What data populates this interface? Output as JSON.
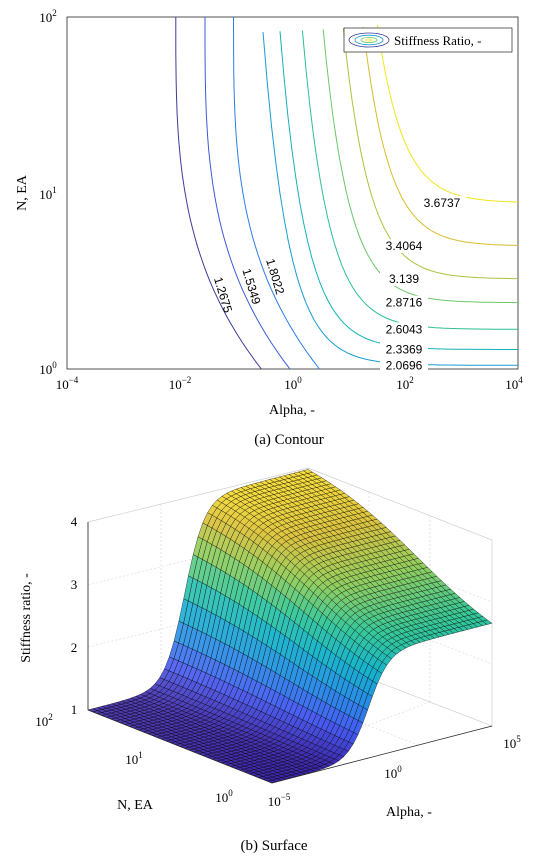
{
  "figure": {
    "caption_a": "(a) Contour",
    "caption_b": "(b) Surface"
  },
  "chart_data": [
    {
      "type": "contour",
      "xlabel": "Alpha, -",
      "ylabel": "N, EA",
      "xscale": "log",
      "yscale": "log",
      "xlim": [
        0.0001,
        10000
      ],
      "ylim": [
        1,
        100
      ],
      "x_ticks": [
        {
          "base": "10",
          "exp": "−4"
        },
        {
          "base": "10",
          "exp": "−2"
        },
        {
          "base": "10",
          "exp": "0"
        },
        {
          "base": "10",
          "exp": "2"
        },
        {
          "base": "10",
          "exp": "4"
        }
      ],
      "y_ticks": [
        {
          "base": "10",
          "exp": "0"
        },
        {
          "base": "10",
          "exp": "1"
        },
        {
          "base": "10",
          "exp": "2"
        }
      ],
      "legend": {
        "label": "Stiffness Ratio, -",
        "location": "top-right"
      },
      "color_scale": "parula",
      "levels": [
        {
          "value": "1.2675",
          "color": "#3a3d9a"
        },
        {
          "value": "1.5349",
          "color": "#3b5bd6"
        },
        {
          "value": "1.8022",
          "color": "#2a7de6"
        },
        {
          "value": "2.0696",
          "color": "#1a9bd0"
        },
        {
          "value": "2.3369",
          "color": "#12b2b6"
        },
        {
          "value": "2.6043",
          "color": "#2cbf96"
        },
        {
          "value": "2.8716",
          "color": "#6dc66a"
        },
        {
          "value": "3.139",
          "color": "#a8c43e"
        },
        {
          "value": "3.4064",
          "color": "#d8bd2c"
        },
        {
          "value": "3.6737",
          "color": "#f2e61c"
        }
      ]
    },
    {
      "type": "surface",
      "zlabel": "Stiffness ratio, -",
      "xlabel": "Alpha, -",
      "ylabel": "N, EA",
      "zlim": [
        1,
        4
      ],
      "z_ticks": [
        "1",
        "2",
        "3",
        "4"
      ],
      "alpha_ticks": [
        {
          "base": "10",
          "exp": "−5"
        },
        {
          "base": "10",
          "exp": "0"
        },
        {
          "base": "10",
          "exp": "5"
        }
      ],
      "n_ticks": [
        {
          "base": "10",
          "exp": "0"
        },
        {
          "base": "10",
          "exp": "1"
        },
        {
          "base": "10",
          "exp": "2"
        }
      ],
      "grid": true,
      "color_scale": "parula"
    }
  ]
}
